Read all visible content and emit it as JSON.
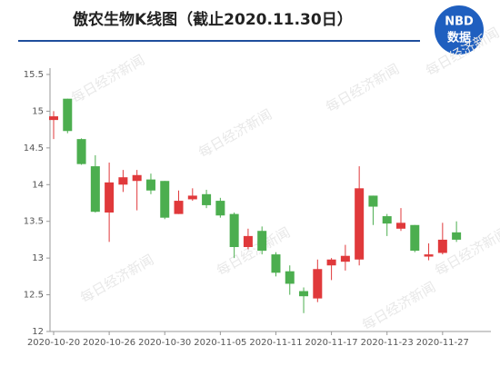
{
  "chart_data": {
    "type": "candlestick",
    "title": "傲农生物K线图（截止2020.11.30日）",
    "logo": {
      "top": "NBD",
      "bottom": "数据"
    },
    "watermark": "每日经济新闻",
    "categories": [
      "2020-10-20",
      null,
      null,
      null,
      "2020-10-26",
      null,
      null,
      null,
      "2020-10-30",
      null,
      null,
      null,
      "2020-11-05",
      null,
      null,
      null,
      "2020-11-11",
      null,
      null,
      null,
      "2020-11-17",
      null,
      null,
      null,
      "2020-11-23",
      null,
      null,
      null,
      "2020-11-27",
      null
    ],
    "open": [
      14.88,
      15.17,
      14.62,
      14.25,
      13.62,
      14.0,
      14.05,
      14.07,
      14.05,
      13.6,
      13.8,
      13.87,
      13.78,
      13.6,
      13.15,
      13.37,
      13.05,
      12.82,
      12.55,
      12.45,
      12.9,
      12.95,
      12.98,
      13.85,
      13.57,
      13.4,
      13.45,
      13.02,
      13.07,
      13.35
    ],
    "high": [
      15.0,
      15.17,
      14.63,
      14.4,
      14.3,
      14.2,
      14.2,
      14.15,
      14.05,
      13.92,
      13.95,
      13.93,
      13.82,
      13.62,
      13.4,
      13.43,
      13.08,
      12.9,
      12.6,
      12.98,
      13.0,
      13.18,
      14.25,
      13.85,
      13.6,
      13.68,
      13.45,
      13.2,
      13.48,
      13.5
    ],
    "low": [
      14.62,
      14.7,
      14.27,
      13.62,
      13.22,
      13.9,
      13.65,
      13.87,
      13.53,
      13.6,
      13.78,
      13.68,
      13.55,
      13.0,
      13.12,
      13.05,
      12.75,
      12.5,
      12.25,
      12.4,
      12.7,
      12.83,
      12.9,
      13.45,
      13.3,
      13.37,
      13.08,
      12.97,
      13.05,
      13.22
    ],
    "close": [
      14.93,
      14.73,
      14.28,
      13.63,
      14.03,
      14.1,
      14.13,
      13.92,
      13.55,
      13.78,
      13.85,
      13.72,
      13.58,
      13.15,
      13.3,
      13.1,
      12.8,
      12.65,
      12.48,
      12.85,
      12.98,
      13.03,
      13.95,
      13.7,
      13.47,
      13.48,
      13.1,
      13.05,
      13.25,
      13.25
    ],
    "up_color": "#e0393b",
    "down_color": "#4cae4f",
    "ylim": [
      12,
      15.5
    ],
    "yticks": [
      12,
      12.5,
      13,
      13.5,
      14,
      14.5,
      15,
      15.5
    ]
  }
}
